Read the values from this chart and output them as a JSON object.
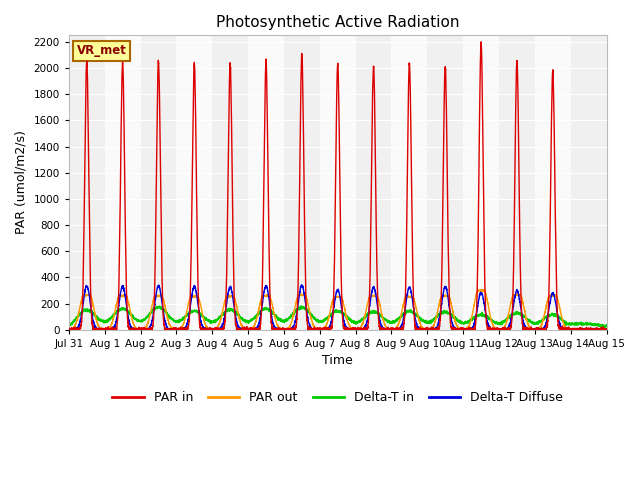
{
  "title": "Photosynthetic Active Radiation",
  "ylabel": "PAR (umol/m2/s)",
  "xlabel": "Time",
  "ylim": [
    0,
    2250
  ],
  "yticks": [
    0,
    200,
    400,
    600,
    800,
    1000,
    1200,
    1400,
    1600,
    1800,
    2000,
    2200
  ],
  "legend_label": "VR_met",
  "series_labels": [
    "PAR in",
    "PAR out",
    "Delta-T in",
    "Delta-T Diffuse"
  ],
  "series_colors": [
    "#dd0000",
    "#ff9900",
    "#00cc00",
    "#0000dd"
  ],
  "n_days": 15,
  "x_tick_labels": [
    "Jul 31",
    "Aug 1",
    "Aug 2",
    "Aug 3",
    "Aug 4",
    "Aug 5",
    "Aug 6",
    "Aug 7",
    "Aug 8",
    "Aug 9",
    "Aug 10",
    "Aug 11",
    "Aug 12",
    "Aug 13",
    "Aug 14",
    "Aug 15"
  ],
  "background_colors": [
    "#f0f0f0",
    "#fafafa"
  ],
  "par_in_peaks": [
    2060,
    2040,
    2050,
    2040,
    2030,
    2040,
    2100,
    2030,
    2010,
    2030,
    2010,
    2190,
    2050,
    1980
  ],
  "par_out_peaks": [
    265,
    260,
    258,
    255,
    255,
    260,
    265,
    250,
    260,
    252,
    258,
    300,
    268,
    260
  ],
  "delta_t_in_peaks": [
    150,
    160,
    170,
    142,
    152,
    160,
    170,
    142,
    137,
    142,
    137,
    115,
    127,
    115
  ],
  "delta_t_diffuse_peaks": [
    335,
    330,
    335,
    330,
    325,
    335,
    340,
    305,
    325,
    325,
    330,
    285,
    300,
    280
  ],
  "linewidth": 1.0,
  "figwidth": 6.4,
  "figheight": 4.8,
  "dpi": 100
}
